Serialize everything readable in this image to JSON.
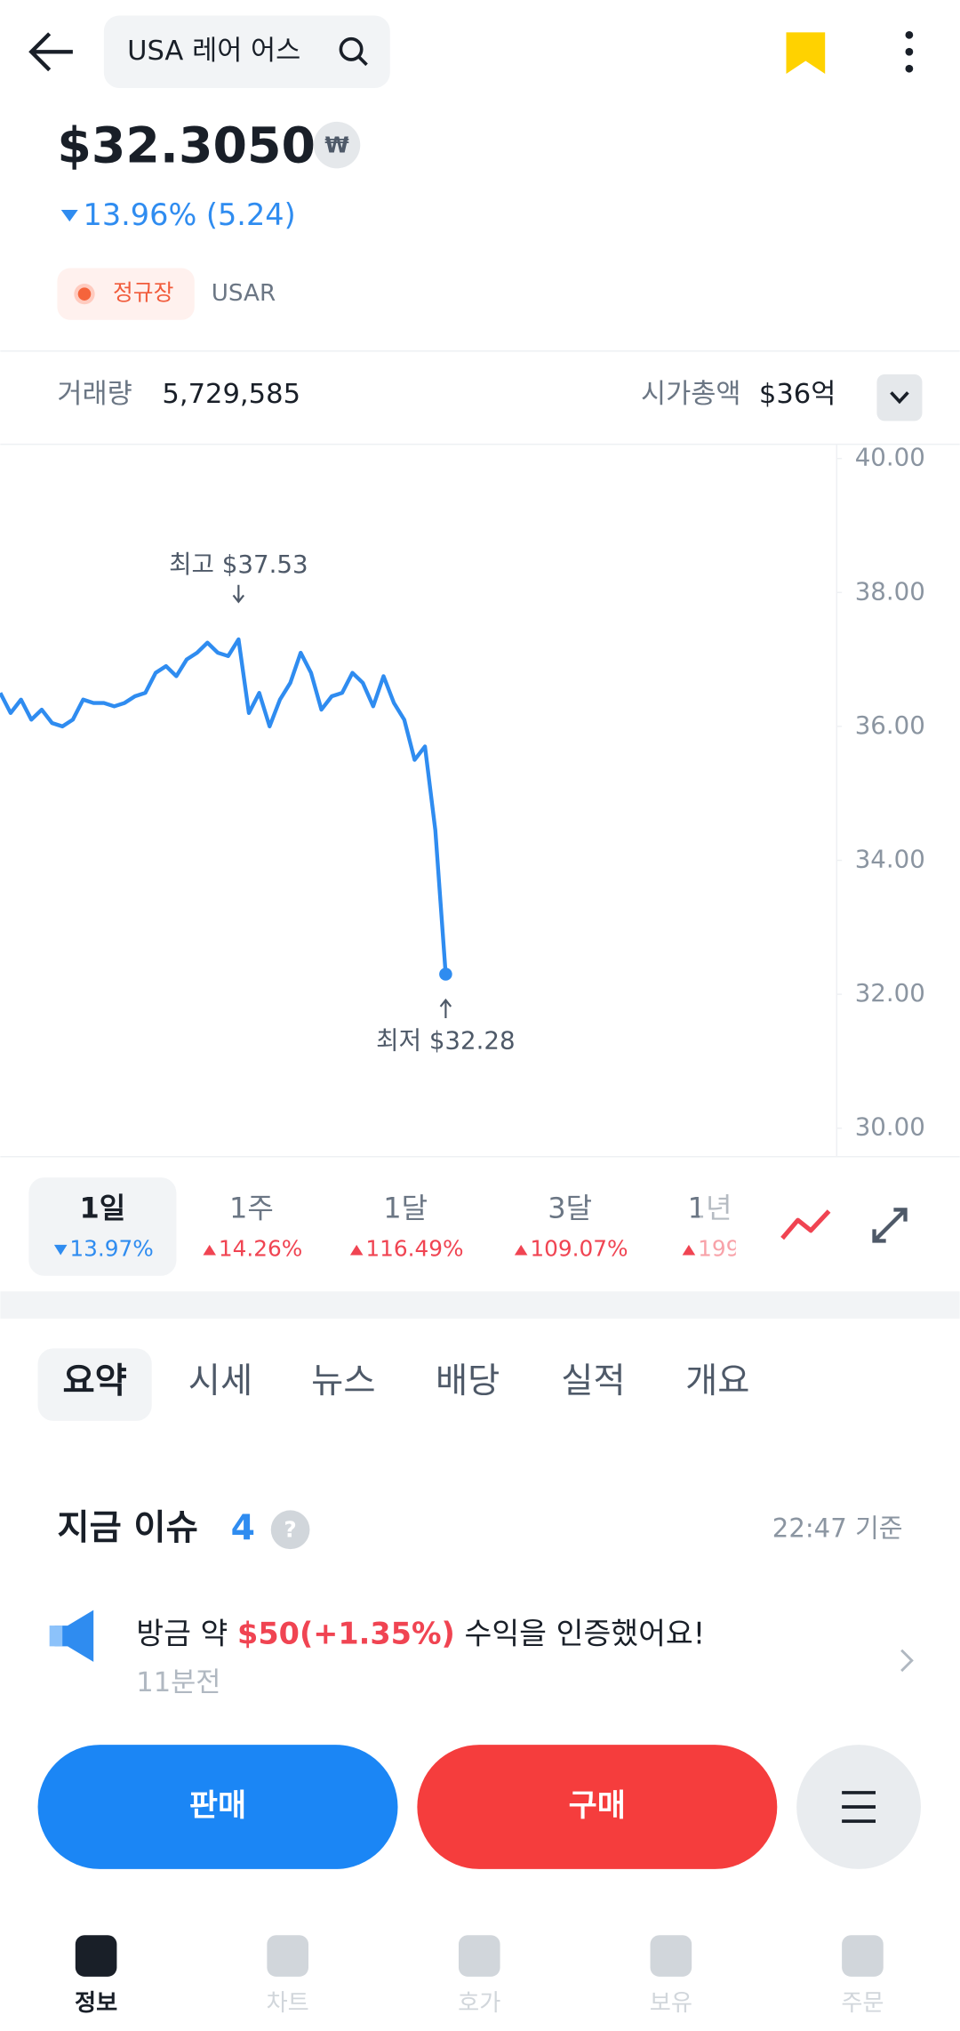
{
  "header": {
    "search": "USA 레어 어스"
  },
  "quote": {
    "price": "$32.3050",
    "currency": "₩",
    "change": "13.96% (5.24)",
    "session": "정규장",
    "ticker": "USAR"
  },
  "stats": {
    "volume_label": "거래량",
    "volume": "5,729,585",
    "market_cap_label": "시가총액",
    "market_cap": "$36억"
  },
  "chart": {
    "type": "line",
    "color": "#2f8cf0",
    "values": [
      36.5,
      36.2,
      36.4,
      36.1,
      36.25,
      36.05,
      36.0,
      36.1,
      36.4,
      36.35,
      36.35,
      36.3,
      36.35,
      36.45,
      36.5,
      36.8,
      36.9,
      36.75,
      37.0,
      37.1,
      37.25,
      37.1,
      37.05,
      37.3,
      36.2,
      36.5,
      36.0,
      36.4,
      36.65,
      37.1,
      36.8,
      36.25,
      36.45,
      36.5,
      36.8,
      36.65,
      36.3,
      36.75,
      36.35,
      36.1,
      35.5,
      35.7,
      34.45,
      32.3
    ],
    "ylim": [
      30,
      40
    ],
    "yticks": [
      {
        "value": 40,
        "label": "40.00"
      },
      {
        "value": 38,
        "label": "38.00"
      },
      {
        "value": 36,
        "label": "36.00"
      },
      {
        "value": 34,
        "label": "34.00"
      },
      {
        "value": 32,
        "label": "32.00"
      },
      {
        "value": 30,
        "label": "30.00"
      }
    ],
    "high_label": "최고 $37.53",
    "low_label": "최저 $32.28"
  },
  "periods": [
    {
      "label": "1일",
      "change": "13.97%"
    },
    {
      "label": "1주",
      "change": "14.26%"
    },
    {
      "label": "1달",
      "change": "116.49%"
    },
    {
      "label": "3달",
      "change": "109.07%"
    },
    {
      "label": "1년",
      "change": "199"
    }
  ],
  "tabs": [
    "요약",
    "시세",
    "뉴스",
    "배당",
    "실적",
    "개요"
  ],
  "issue": {
    "title": "지금 이슈",
    "count": "4",
    "help": "?",
    "time": "22:47 기준"
  },
  "news": {
    "prefix": "방금 약 ",
    "amount": "$50(+1.35%)",
    "suffix": " 수익을 인증했어요!",
    "age": "11분전"
  },
  "actions": {
    "sell": "판매",
    "buy": "구매"
  },
  "nav": [
    "정보",
    "차트",
    "호가",
    "보유",
    "주문"
  ]
}
